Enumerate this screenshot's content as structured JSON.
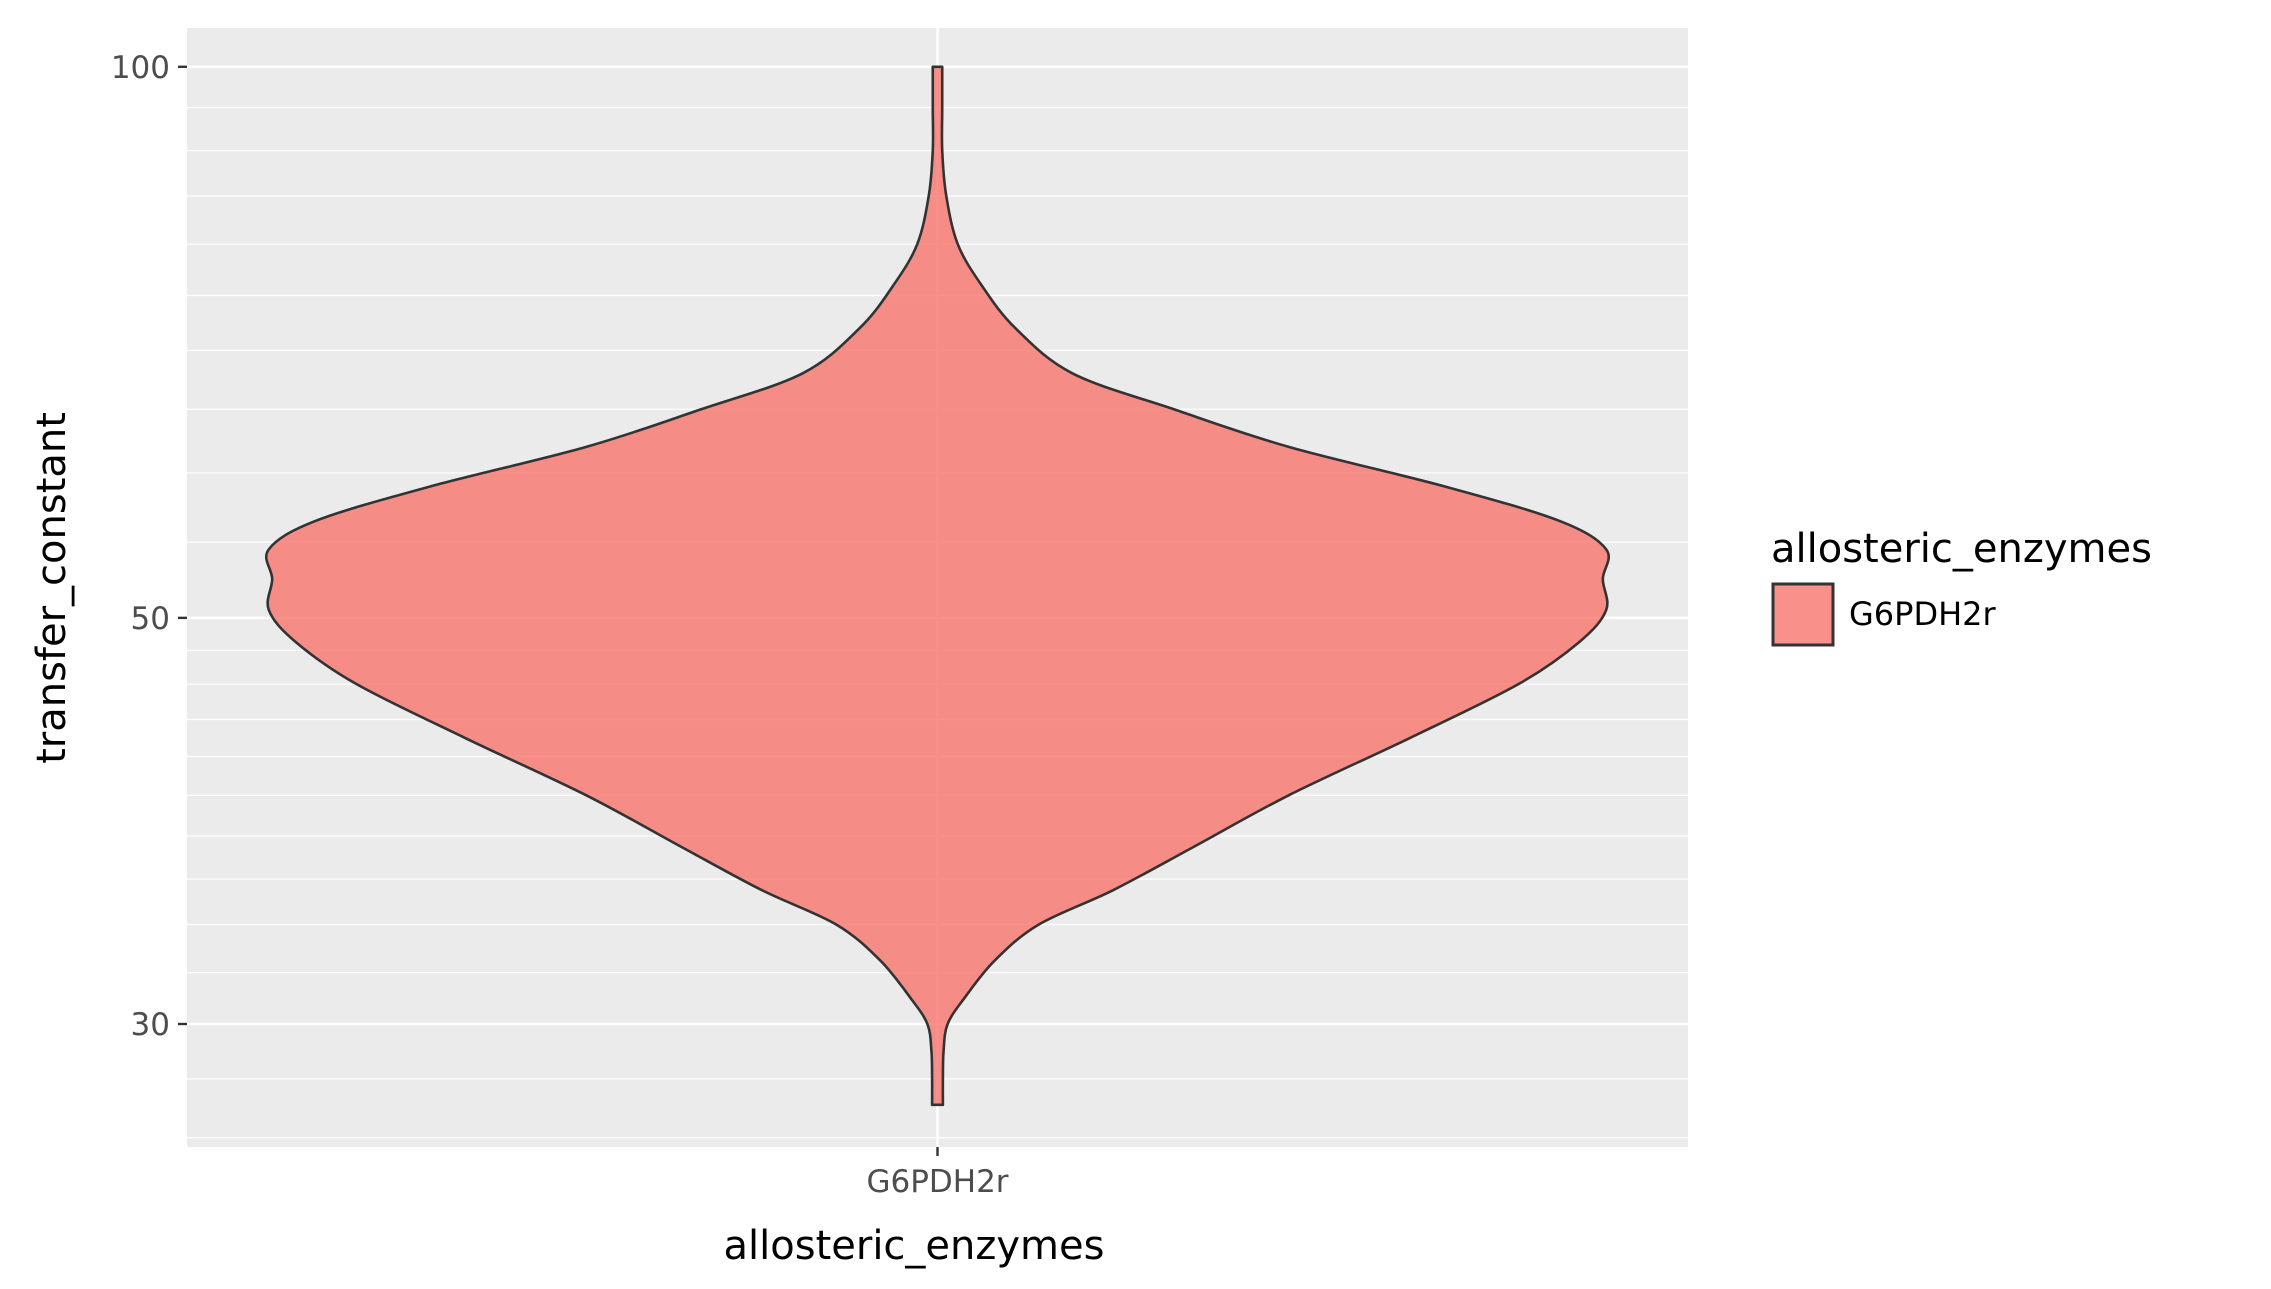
{
  "chart_data": {
    "type": "violin",
    "xlabel": "allosteric_enzymes",
    "ylabel": "transfer_constant",
    "y_scale": "log10",
    "ylim": [
      25.7,
      105
    ],
    "y_ticks": [
      {
        "value": 30,
        "label": "30"
      },
      {
        "value": 50,
        "label": "50"
      },
      {
        "value": 100,
        "label": "100"
      }
    ],
    "categories": [
      "G6PDH2r"
    ],
    "series": [
      {
        "name": "G6PDH2r",
        "color": "#F8766D",
        "opacity": 0.8,
        "y_min": 27.1,
        "y_max": 100,
        "density_profile": [
          {
            "y": 27.1,
            "w": 0.008
          },
          {
            "y": 28.0,
            "w": 0.008
          },
          {
            "y": 29.0,
            "w": 0.009
          },
          {
            "y": 30.0,
            "w": 0.015
          },
          {
            "y": 31.0,
            "w": 0.04
          },
          {
            "y": 32.5,
            "w": 0.085
          },
          {
            "y": 34.0,
            "w": 0.15
          },
          {
            "y": 35.5,
            "w": 0.26
          },
          {
            "y": 37.5,
            "w": 0.38
          },
          {
            "y": 40.0,
            "w": 0.52
          },
          {
            "y": 43.0,
            "w": 0.7
          },
          {
            "y": 46.0,
            "w": 0.86
          },
          {
            "y": 48.5,
            "w": 0.95
          },
          {
            "y": 50.5,
            "w": 0.99
          },
          {
            "y": 52.5,
            "w": 0.985
          },
          {
            "y": 54.5,
            "w": 0.99
          },
          {
            "y": 56.5,
            "w": 0.92
          },
          {
            "y": 59.0,
            "w": 0.75
          },
          {
            "y": 62.0,
            "w": 0.52
          },
          {
            "y": 65.0,
            "w": 0.35
          },
          {
            "y": 68.0,
            "w": 0.2
          },
          {
            "y": 72.0,
            "w": 0.115
          },
          {
            "y": 76.0,
            "w": 0.065
          },
          {
            "y": 80.0,
            "w": 0.03
          },
          {
            "y": 85.0,
            "w": 0.013
          },
          {
            "y": 90.0,
            "w": 0.007
          },
          {
            "y": 95.0,
            "w": 0.007
          },
          {
            "y": 100.0,
            "w": 0.007
          }
        ]
      }
    ],
    "legend": {
      "title": "allosteric_enzymes",
      "position": "right",
      "entries": [
        {
          "label": "G6PDH2r",
          "color": "#F8766D"
        }
      ]
    },
    "panel_background": "#EBEBEB",
    "grid_color": "#FFFFFF",
    "outline_color": "#333333",
    "grid": true
  }
}
